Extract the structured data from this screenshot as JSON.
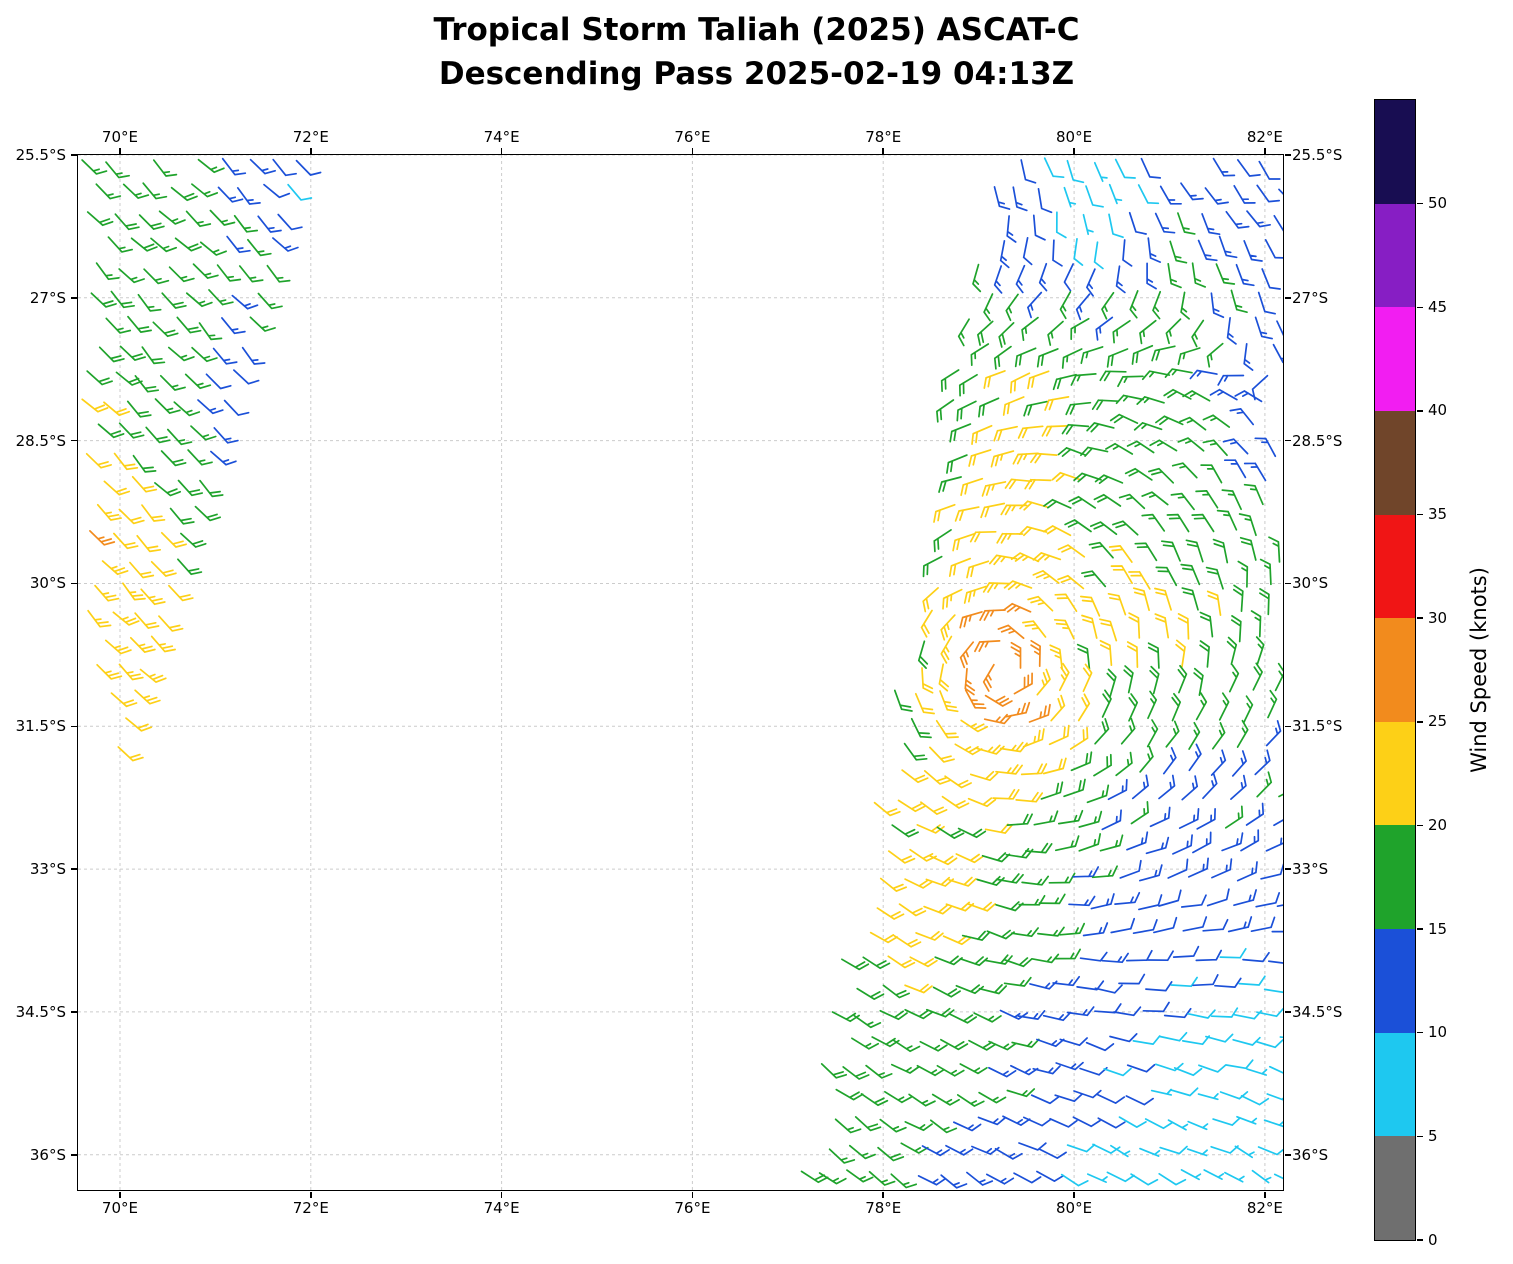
{
  "title": {
    "line1": "Tropical Storm Taliah (2025) ASCAT-C",
    "line2": "Descending Pass 2025-02-19 04:13Z"
  },
  "axes": {
    "lon_ticks": [
      {
        "value": 70,
        "label": "70°E"
      },
      {
        "value": 72,
        "label": "72°E"
      },
      {
        "value": 74,
        "label": "74°E"
      },
      {
        "value": 76,
        "label": "76°E"
      },
      {
        "value": 78,
        "label": "78°E"
      },
      {
        "value": 80,
        "label": "80°E"
      },
      {
        "value": 82,
        "label": "82°E"
      }
    ],
    "lat_ticks": [
      {
        "value": 25.5,
        "label": "25.5°S"
      },
      {
        "value": 27,
        "label": "27°S"
      },
      {
        "value": 28.5,
        "label": "28.5°S"
      },
      {
        "value": 30,
        "label": "30°S"
      },
      {
        "value": 31.5,
        "label": "31.5°S"
      },
      {
        "value": 33,
        "label": "33°S"
      },
      {
        "value": 34.5,
        "label": "34.5°S"
      },
      {
        "value": 36,
        "label": "36°S"
      }
    ]
  },
  "colorbar": {
    "label": "Wind Speed (knots)",
    "max_value": 55,
    "tick_values": [
      0,
      5,
      10,
      15,
      20,
      25,
      30,
      35,
      40,
      45,
      50
    ],
    "colors": [
      "#6f6f6f",
      "#1ec8f0",
      "#1b50d8",
      "#1fa32b",
      "#fdd017",
      "#f28b1d",
      "#f01515",
      "#70452a",
      "#f21df2",
      "#871ec4",
      "#180d52"
    ]
  },
  "chart_data": {
    "type": "wind_barb_map",
    "storm_name": "Taliah",
    "instrument": "ASCAT-C",
    "pass": "Descending",
    "datetime_utc": "2025-02-19 04:13Z",
    "units": "knots",
    "lon_range_deg_e": [
      69.56,
      82.19
    ],
    "lat_range_deg_s": [
      25.5,
      36.37
    ],
    "speed_bins_knots": [
      0,
      5,
      10,
      15,
      20,
      25,
      30,
      35,
      40,
      45,
      50,
      55
    ],
    "storm_center_estimate": {
      "lon_e": 79.25,
      "lat_s": 30.9,
      "peak_wind_knots": 29
    },
    "barb_grid": {
      "col_step_deg": 0.25,
      "row_step_deg": 0.28
    },
    "swaths": [
      {
        "name": "left-swath",
        "col_lon_start": 69.6,
        "col_lon_end": 72.1,
        "col_tilt": -0.3,
        "lat_start": 25.55,
        "lat_end": 32.4,
        "left_edge": {
          "base": 69.58,
          "slope": 0.22,
          "kink_lat": 30.3
        },
        "right_edge": {
          "base": 72.05,
          "slope": -0.3,
          "ref": 25.5
        }
      },
      {
        "name": "right-swath",
        "col_lon_start": 79.2,
        "col_lon_end": 84.6,
        "col_tilt": -0.196,
        "lat_start": 25.55,
        "lat_end": 36.45,
        "left_edge": {
          "base": 79.2,
          "slope": -0.196,
          "ref": 25.5
        },
        "right_edge": {
          "base": 82.17,
          "slope": 0,
          "ref": 25.5
        }
      }
    ],
    "wind_field": {
      "base_knots": 17,
      "clamp_knots": [
        5.2,
        29.4
      ],
      "background_toward_en": [
        -0.707,
        0.707
      ],
      "vortex": {
        "lon_e": 79.25,
        "lat_s": 30.9,
        "rotation": "clockwise",
        "blend_radius_deg": 5
      },
      "speed_blobs": [
        {
          "lon_e": 79.25,
          "lat_s": 30.9,
          "amp": 11.0,
          "sx": 0.55,
          "sy": 0.8
        },
        {
          "lon_e": 79.5,
          "lat_s": 28.6,
          "amp": 5.5,
          "sx": 0.5,
          "sy": 1.0
        },
        {
          "lon_e": 78.5,
          "lat_s": 33.3,
          "amp": 5.5,
          "sx": 0.9,
          "sy": 1.1
        },
        {
          "lon_e": 81.0,
          "lat_s": 30.4,
          "amp": 4.5,
          "sx": 0.55,
          "sy": 0.6
        },
        {
          "lon_e": 69.9,
          "lat_s": 31.0,
          "amp": 6.0,
          "sx": 0.7,
          "sy": 1.4
        },
        {
          "lon_e": 69.6,
          "lat_s": 29.2,
          "amp": 4.0,
          "sx": 0.35,
          "sy": 0.9
        },
        {
          "lon_e": 80.1,
          "lat_s": 25.5,
          "amp": -7.0,
          "sx": 0.5,
          "sy": 0.8
        },
        {
          "lon_e": 80.2,
          "lat_s": 25.8,
          "amp": -4.0,
          "sx": 1.2,
          "sy": 1.0
        },
        {
          "lon_e": 82.35,
          "lat_s": 26.6,
          "amp": -6.0,
          "sx": 0.8,
          "sy": 1.7
        },
        {
          "lon_e": 81.2,
          "lat_s": 26.5,
          "amp": 3.5,
          "sx": 0.45,
          "sy": 1.2
        },
        {
          "lon_e": 82.3,
          "lat_s": 36.0,
          "amp": -8.0,
          "sx": 1.4,
          "sy": 1.3
        },
        {
          "lon_e": 80.8,
          "lat_s": 34.3,
          "amp": -5.0,
          "sx": 1.5,
          "sy": 1.6
        },
        {
          "lon_e": 80.0,
          "lat_s": 36.7,
          "amp": -6.0,
          "sx": 0.9,
          "sy": 0.7
        },
        {
          "lon_e": 71.95,
          "lat_s": 25.75,
          "amp": -7.0,
          "sx": 0.55,
          "sy": 0.6
        },
        {
          "lon_e": 71.2,
          "lat_s": 28.0,
          "amp": -7.0,
          "sx": 0.33,
          "sy": 0.5
        }
      ]
    }
  }
}
